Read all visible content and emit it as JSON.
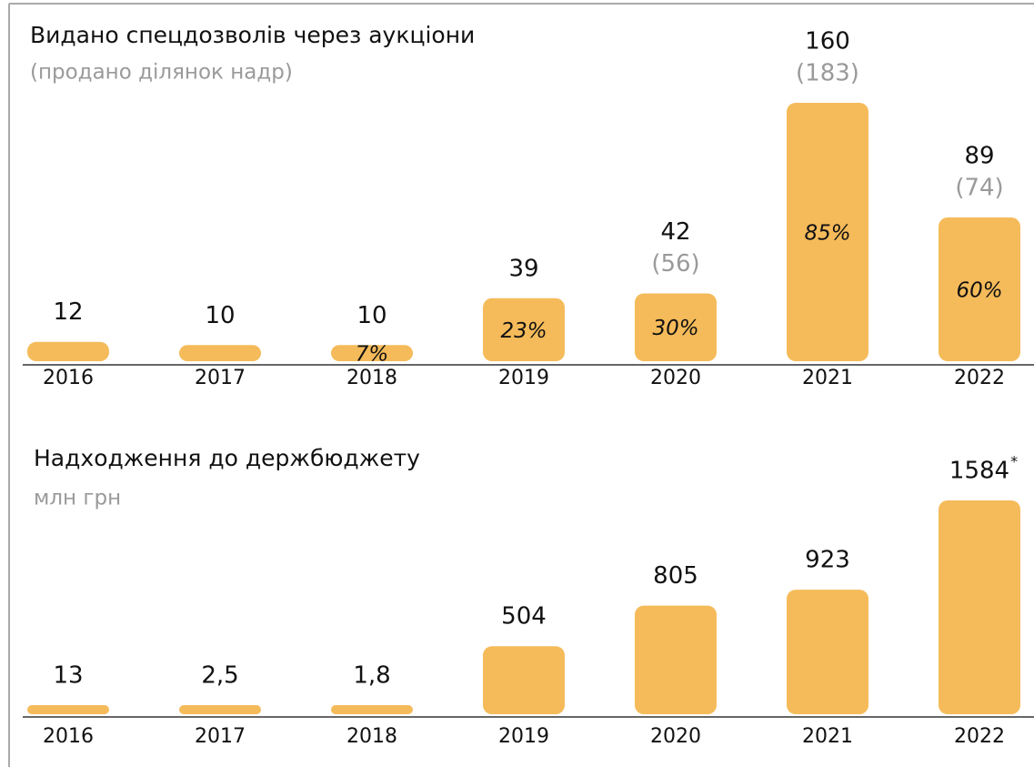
{
  "chart_data": [
    {
      "type": "bar",
      "title": "Видано спецдозволів через аукціони",
      "subtitle": "(продано ділянок надр)",
      "categories": [
        "2016",
        "2017",
        "2018",
        "2019",
        "2020",
        "2021",
        "2022"
      ],
      "values": [
        12,
        10,
        10,
        39,
        42,
        160,
        89
      ],
      "plots_sold": {
        "values": [
          null,
          null,
          null,
          null,
          56,
          183,
          74
        ],
        "value_labels": [
          null,
          null,
          null,
          null,
          "(56)",
          "(183)",
          "(74)"
        ]
      },
      "shares": {
        "values": [
          null,
          null,
          7,
          23,
          30,
          85,
          60
        ],
        "value_labels": [
          null,
          null,
          "7%",
          "23%",
          "30%",
          "85%",
          "60%"
        ]
      },
      "color": "#f5bb5a",
      "ylim": [
        0,
        160
      ]
    },
    {
      "type": "bar",
      "title": "Надходження до держбюджету",
      "subtitle": "млн грн",
      "categories": [
        "2016",
        "2017",
        "2018",
        "2019",
        "2020",
        "2021",
        "2022"
      ],
      "values": [
        13,
        2.5,
        1.8,
        504,
        805,
        923,
        1584
      ],
      "value_labels": [
        "13",
        "2,5",
        "1,8",
        "504",
        "805",
        "923",
        "1584"
      ],
      "footnote_mark": "*",
      "color": "#f5bb5a",
      "ylim": [
        0,
        1584
      ]
    }
  ]
}
